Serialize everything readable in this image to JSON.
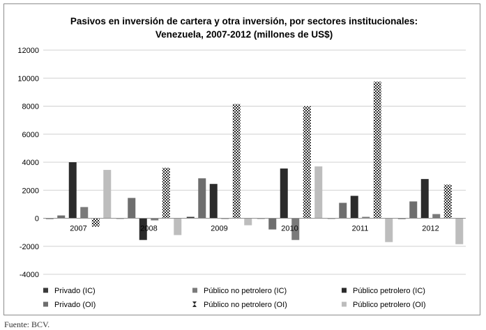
{
  "chart_data": {
    "type": "bar",
    "title_line1": "Pasivos en inversión de cartera y otra inversión, por sectores institucionales:",
    "title_line2": "Venezuela, 2007-2012  (millones de US$)",
    "categories": [
      "2007",
      "2008",
      "2009",
      "2010",
      "2011",
      "2012"
    ],
    "ylim": [
      -4000,
      12000
    ],
    "yticks": [
      -4000,
      -2000,
      0,
      2000,
      4000,
      6000,
      8000,
      10000,
      12000
    ],
    "grid": true,
    "legend_position": "bottom",
    "series": [
      {
        "name": "Privado (IC)",
        "color": "#3a3a3a",
        "pattern": "solid",
        "values": [
          -50,
          0,
          100,
          0,
          0,
          -50
        ]
      },
      {
        "name": "Privado (OI)",
        "color": "#6e6e6e",
        "pattern": "solid",
        "values": [
          200,
          1450,
          2850,
          -800,
          1100,
          1200
        ]
      },
      {
        "name": "Público petrolero  (IC)",
        "color": "#2b2b2b",
        "pattern": "solid",
        "values": [
          4000,
          -1550,
          2450,
          3550,
          1600,
          2800
        ]
      },
      {
        "name": "Público no petrolero  (IC)",
        "color": "#7a7a7a",
        "pattern": "solid",
        "values": [
          800,
          -150,
          -50,
          -1550,
          100,
          300
        ]
      },
      {
        "name": "Público no petrolero  (OI)",
        "color": "#2b2b2b",
        "pattern": "checker",
        "values": [
          -600,
          3600,
          8150,
          8000,
          9750,
          2400
        ]
      },
      {
        "name": "Público petrolero  (OI)",
        "color": "#bdbdbd",
        "pattern": "solid",
        "values": [
          3450,
          -1200,
          -500,
          3700,
          -1700,
          -1850
        ]
      }
    ],
    "legend_layout": [
      [
        "Privado (IC)",
        "Público no petrolero  (IC)",
        "Público petrolero  (IC)"
      ],
      [
        "Privado (OI)",
        "Público no petrolero  (OI)",
        "Público petrolero  (OI)"
      ]
    ]
  },
  "source": "Fuente: BCV."
}
